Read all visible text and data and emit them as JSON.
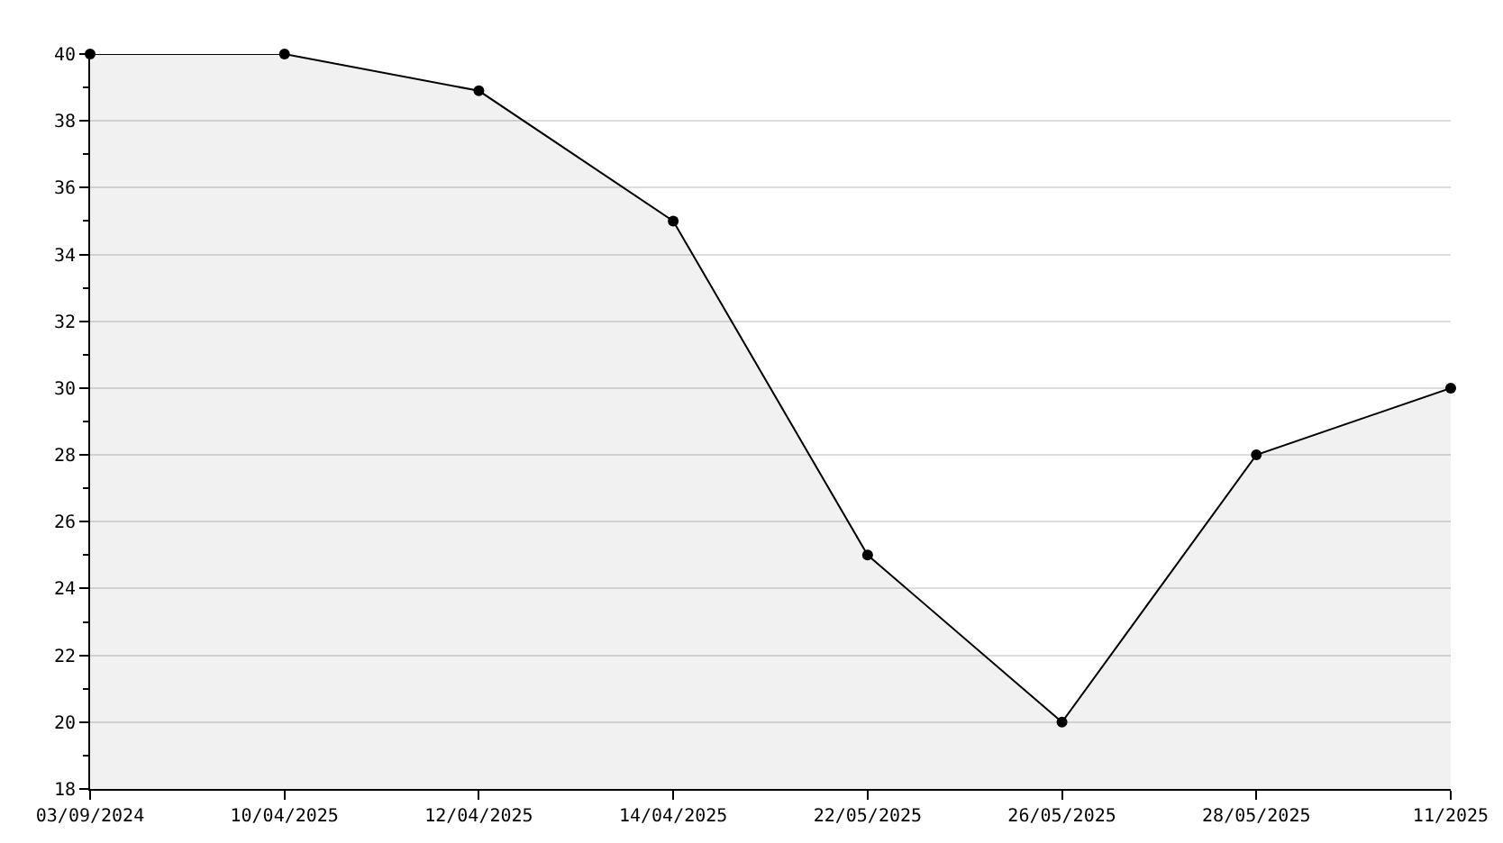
{
  "chart_data": {
    "type": "area",
    "categories": [
      "03/09/2024",
      "10/04/2025",
      "12/04/2025",
      "14/04/2025",
      "22/05/2025",
      "26/05/2025",
      "28/05/2025",
      "11/2025"
    ],
    "series": [
      {
        "color": "#000000",
        "values": [
          40,
          40,
          38.9,
          35,
          25,
          20,
          28,
          30
        ]
      }
    ],
    "ylim": [
      18,
      40
    ],
    "yticks": [
      18,
      20,
      22,
      24,
      26,
      28,
      30,
      32,
      34,
      36,
      38,
      40
    ],
    "grid": "y",
    "marker": "circle",
    "line_style": "solid",
    "legend": false
  }
}
